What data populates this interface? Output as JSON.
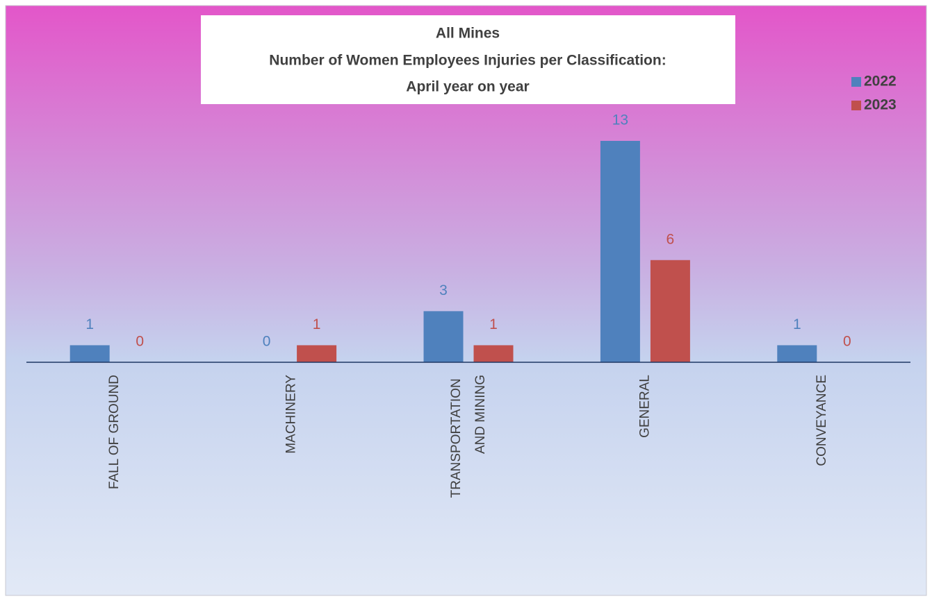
{
  "chart_data": {
    "type": "bar",
    "title": [
      "All Mines",
      "Number of Women Employees Injuries per Classification:",
      "April year on year"
    ],
    "categories": [
      "FALL OF GROUND",
      "MACHINERY",
      "TRANSPORTATION AND MINING",
      "GENERAL",
      "CONVEYANCE"
    ],
    "series": [
      {
        "name": "2022",
        "color": "#4f81bd",
        "values": [
          1,
          0,
          3,
          13,
          1
        ]
      },
      {
        "name": "2023",
        "color": "#c0504d",
        "values": [
          0,
          1,
          1,
          6,
          0
        ]
      }
    ],
    "legend": "top-right"
  }
}
